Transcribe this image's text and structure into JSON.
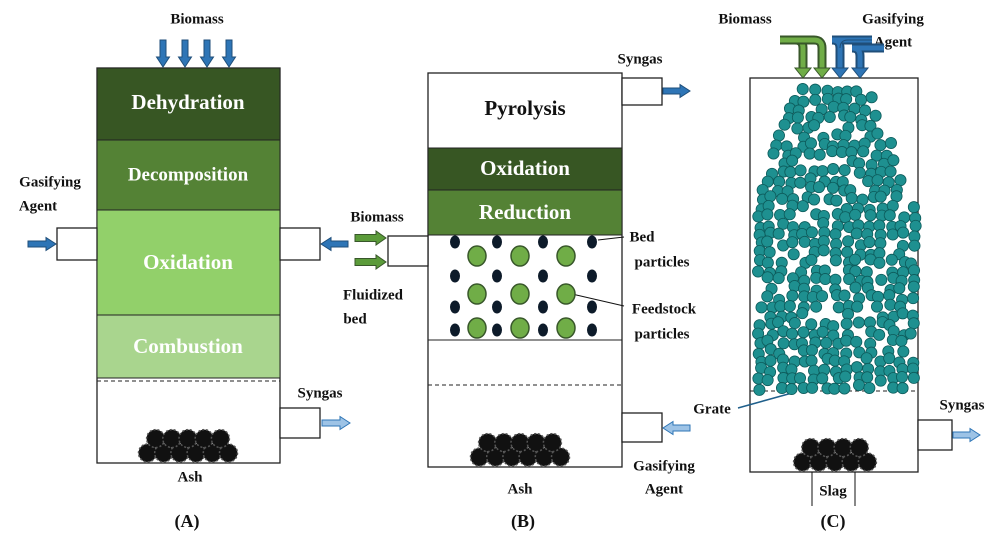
{
  "panel_a": {
    "biomass": "Biomass",
    "zones": [
      "Dehydration",
      "Decomposition",
      "Oxidation",
      "Combustion"
    ],
    "gasifying_agent": [
      "Gasifying",
      "Agent"
    ],
    "syngas": "Syngas",
    "ash": "Ash",
    "label": "(A)"
  },
  "panel_b": {
    "syngas": "Syngas",
    "zones": [
      "Pyrolysis",
      "Oxidation",
      "Reduction"
    ],
    "biomass": "Biomass",
    "fluidized_bed": [
      "Fluidized",
      "bed"
    ],
    "bed_particles": [
      "Bed",
      "particles"
    ],
    "feedstock_particles": [
      "Feedstock",
      "particles"
    ],
    "gasifying_agent": [
      "Gasifying",
      "Agent"
    ],
    "ash": "Ash",
    "label": "(B)"
  },
  "panel_c": {
    "biomass": "Biomass",
    "gasifying_agent": [
      "Gasifying",
      "Agent"
    ],
    "grate": "Grate",
    "syngas": "Syngas",
    "slag": "Slag",
    "label": "(C)"
  }
}
